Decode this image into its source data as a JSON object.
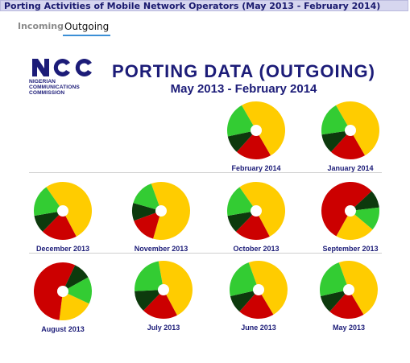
{
  "window": {
    "title": "Porting Activities of Mobile Network Operators (May 2013 - February 2014)"
  },
  "tabs": [
    {
      "label": "Incoming",
      "active": false
    },
    {
      "label": "Outgoing",
      "active": true
    }
  ],
  "logo": {
    "line1": "NIGERIAN",
    "line2": "COMMUNICATIONS",
    "line3": "COMMISSION"
  },
  "header": {
    "title": "PORTING DATA (OUTGOING)",
    "subtitle": "May 2013 - February 2014"
  },
  "colors": {
    "yellow": "#ffcc00",
    "red": "#cc0000",
    "dark_green": "#0d3a0d",
    "green": "#33cc33",
    "title_blue": "#1c1c78"
  },
  "chart_data": [
    {
      "type": "pie",
      "label": "February 2014",
      "slices": [
        {
          "color": "yellow",
          "value": 50
        },
        {
          "color": "red",
          "value": 20
        },
        {
          "color": "dark_green",
          "value": 10
        },
        {
          "color": "green",
          "value": 20
        }
      ]
    },
    {
      "type": "pie",
      "label": "January 2014",
      "slices": [
        {
          "color": "yellow",
          "value": 50
        },
        {
          "color": "red",
          "value": 20
        },
        {
          "color": "dark_green",
          "value": 11
        },
        {
          "color": "green",
          "value": 19
        }
      ]
    },
    {
      "type": "pie",
      "label": "December 2013",
      "slices": [
        {
          "color": "yellow",
          "value": 52
        },
        {
          "color": "red",
          "value": 20
        },
        {
          "color": "dark_green",
          "value": 10
        },
        {
          "color": "green",
          "value": 18
        }
      ]
    },
    {
      "type": "pie",
      "label": "November 2013",
      "slices": [
        {
          "color": "yellow",
          "value": 60
        },
        {
          "color": "red",
          "value": 15
        },
        {
          "color": "dark_green",
          "value": 10
        },
        {
          "color": "green",
          "value": 15
        }
      ]
    },
    {
      "type": "pie",
      "label": "October 2013",
      "slices": [
        {
          "color": "yellow",
          "value": 52
        },
        {
          "color": "red",
          "value": 20
        },
        {
          "color": "dark_green",
          "value": 10
        },
        {
          "color": "green",
          "value": 18
        }
      ]
    },
    {
      "type": "pie",
      "label": "September 2013",
      "slices": [
        {
          "color": "yellow",
          "value": 22
        },
        {
          "color": "red",
          "value": 55
        },
        {
          "color": "dark_green",
          "value": 10
        },
        {
          "color": "green",
          "value": 13
        }
      ]
    },
    {
      "type": "pie",
      "label": "August 2013",
      "slices": [
        {
          "color": "yellow",
          "value": 20
        },
        {
          "color": "red",
          "value": 55
        },
        {
          "color": "dark_green",
          "value": 10
        },
        {
          "color": "green",
          "value": 15
        }
      ]
    },
    {
      "type": "pie",
      "label": "July 2013",
      "slices": [
        {
          "color": "yellow",
          "value": 45
        },
        {
          "color": "red",
          "value": 20
        },
        {
          "color": "dark_green",
          "value": 12
        },
        {
          "color": "green",
          "value": 23
        }
      ]
    },
    {
      "type": "pie",
      "label": "June 2013",
      "slices": [
        {
          "color": "yellow",
          "value": 47
        },
        {
          "color": "red",
          "value": 20
        },
        {
          "color": "dark_green",
          "value": 10
        },
        {
          "color": "green",
          "value": 23
        }
      ]
    },
    {
      "type": "pie",
      "label": "May 2013",
      "slices": [
        {
          "color": "yellow",
          "value": 47
        },
        {
          "color": "red",
          "value": 20
        },
        {
          "color": "dark_green",
          "value": 10
        },
        {
          "color": "green",
          "value": 23
        }
      ]
    }
  ]
}
